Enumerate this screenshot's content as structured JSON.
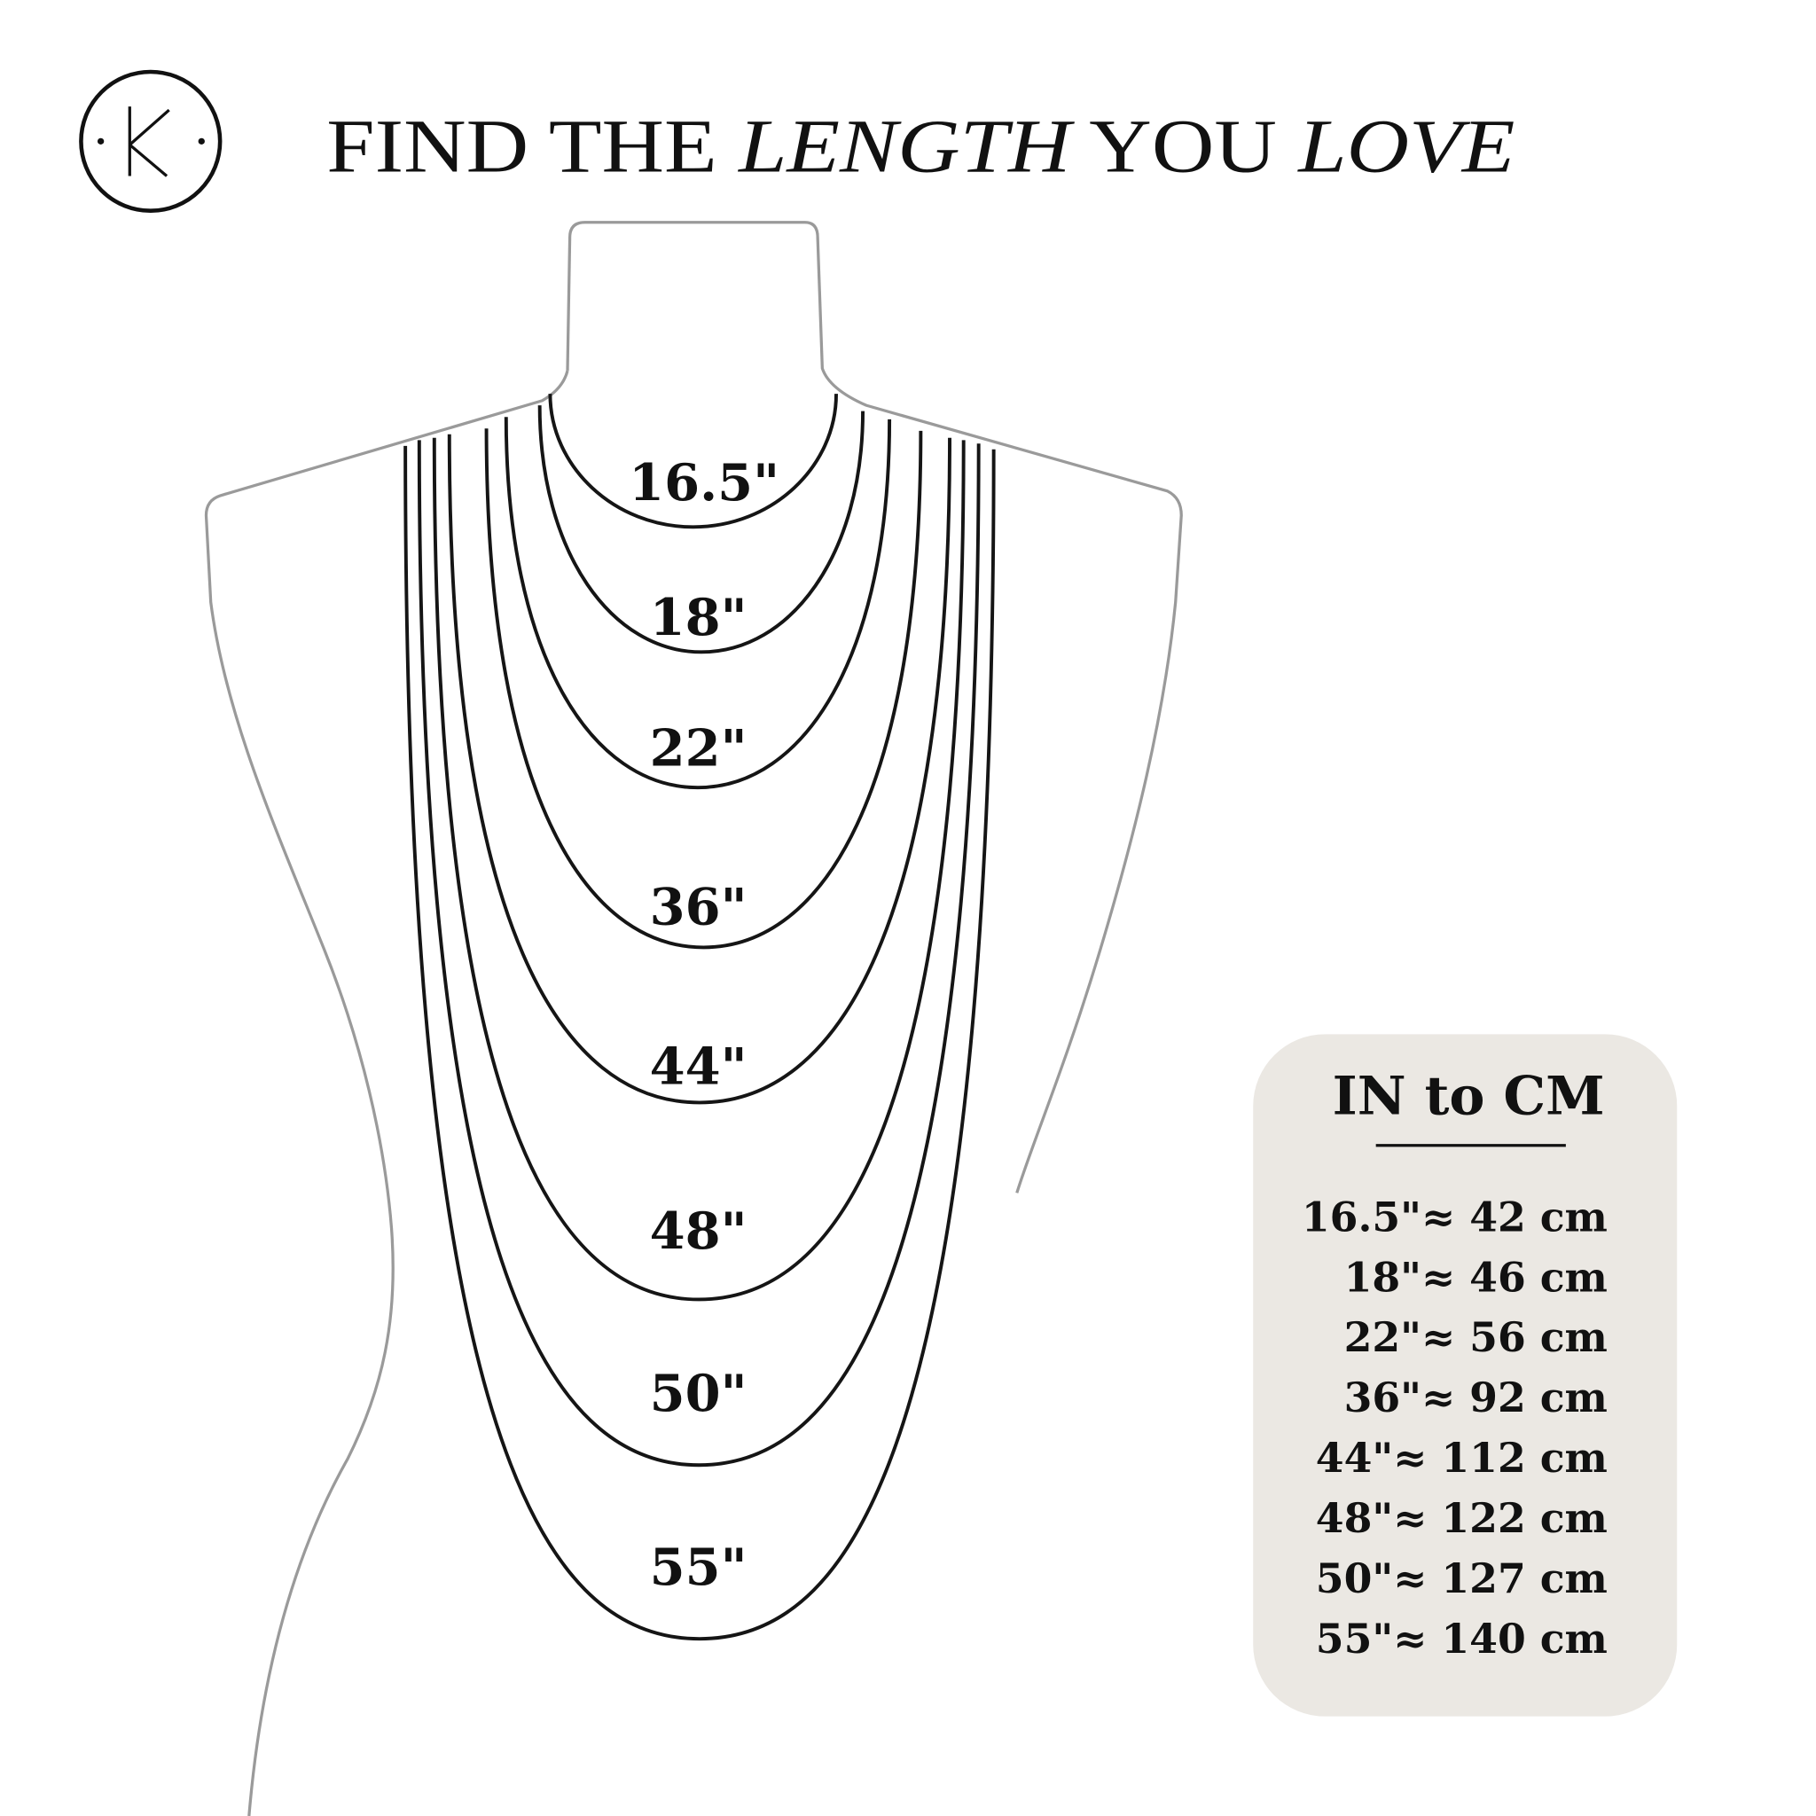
{
  "logo": {
    "letter": "K",
    "icon": "circle-k-logo"
  },
  "title": {
    "part1": "FIND THE ",
    "part2": "LENGTH",
    "part3": " YOU ",
    "part4": "LOVE"
  },
  "necklaces": [
    {
      "label": "16.5\""
    },
    {
      "label": "18\""
    },
    {
      "label": "22\""
    },
    {
      "label": "36\""
    },
    {
      "label": "44\""
    },
    {
      "label": "48\""
    },
    {
      "label": "50\""
    },
    {
      "label": "55\""
    }
  ],
  "conversion": {
    "heading": "IN to CM",
    "background": "#ebe8e3",
    "rows": [
      "16.5\"≈ 42 cm",
      "18\"≈ 46 cm",
      "22\"≈ 56 cm",
      "36\"≈ 92 cm",
      "44\"≈ 112 cm",
      "48\"≈ 122 cm",
      "50\"≈ 127 cm",
      "55\"≈ 140 cm"
    ]
  }
}
